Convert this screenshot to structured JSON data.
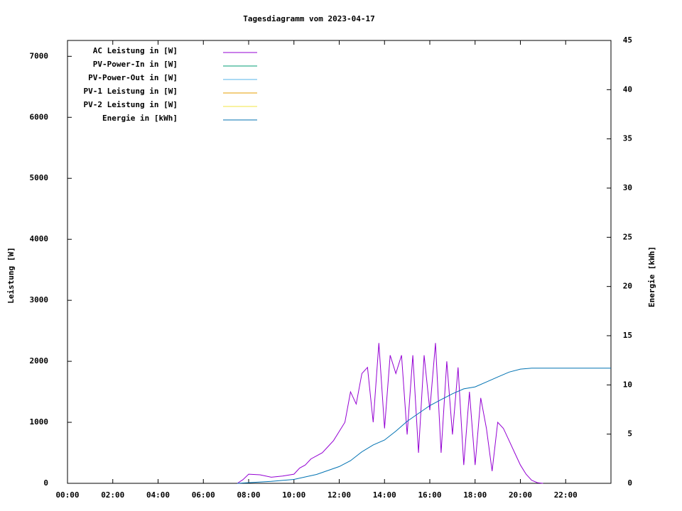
{
  "chart_data": {
    "type": "line",
    "title": "Tagesdiagramm vom 2023-04-17",
    "y_label": "Leistung [W]",
    "y2_label": "Energie [kWh]",
    "xlim": [
      0,
      24
    ],
    "xticks": [
      {
        "value": 0,
        "label": "00:00"
      },
      {
        "value": 2,
        "label": "02:00"
      },
      {
        "value": 4,
        "label": "04:00"
      },
      {
        "value": 6,
        "label": "06:00"
      },
      {
        "value": 8,
        "label": "08:00"
      },
      {
        "value": 10,
        "label": "10:00"
      },
      {
        "value": 12,
        "label": "12:00"
      },
      {
        "value": 14,
        "label": "14:00"
      },
      {
        "value": 16,
        "label": "16:00"
      },
      {
        "value": 18,
        "label": "18:00"
      },
      {
        "value": 20,
        "label": "20:00"
      },
      {
        "value": 22,
        "label": "22:00"
      }
    ],
    "ylim": [
      0,
      7260
    ],
    "yticks": [
      0,
      1000,
      2000,
      3000,
      4000,
      5000,
      6000,
      7000
    ],
    "y2lim": [
      0,
      45
    ],
    "y2ticks": [
      0,
      5,
      10,
      15,
      20,
      25,
      30,
      35,
      40,
      45
    ],
    "grid": false,
    "legend": "top-left",
    "series": [
      {
        "name": "AC Leistung in [W]",
        "color": "#9400d3",
        "x": [
          7.5,
          7.75,
          8,
          8.5,
          9,
          9.5,
          10,
          10.25,
          10.5,
          10.75,
          11,
          11.25,
          11.5,
          11.75,
          12,
          12.25,
          12.5,
          12.75,
          13,
          13.25,
          13.5,
          13.75,
          14,
          14.25,
          14.5,
          14.75,
          15,
          15.25,
          15.5,
          15.75,
          16,
          16.25,
          16.5,
          16.75,
          17,
          17.25,
          17.5,
          17.75,
          18,
          18.25,
          18.5,
          18.75,
          19,
          19.25,
          19.5,
          19.75,
          20,
          20.25,
          20.5,
          20.75,
          21
        ],
        "values": [
          0,
          60,
          150,
          140,
          100,
          120,
          150,
          250,
          300,
          400,
          450,
          500,
          600,
          700,
          850,
          1000,
          1500,
          1300,
          1800,
          1900,
          1000,
          2300,
          900,
          2100,
          1800,
          2100,
          800,
          2100,
          500,
          2100,
          1200,
          2300,
          500,
          2000,
          800,
          1900,
          300,
          1500,
          300,
          1400,
          900,
          200,
          1000,
          900,
          700,
          500,
          300,
          150,
          50,
          10,
          0
        ]
      },
      {
        "name": "PV-Power-In in [W]",
        "color": "#009e73",
        "x": [],
        "values": []
      },
      {
        "name": "PV-Power-Out in [W]",
        "color": "#56b4e9",
        "x": [],
        "values": []
      },
      {
        "name": "PV-1 Leistung in [W]",
        "color": "#e69f00",
        "x": [],
        "values": []
      },
      {
        "name": "PV-2 Leistung in [W]",
        "color": "#f0e442",
        "x": [],
        "values": []
      },
      {
        "name": "Energie in [kWh]",
        "color": "#0072b2",
        "axis": "y2",
        "x": [
          7.5,
          9,
          10,
          11,
          12,
          12.5,
          13,
          13.5,
          14,
          14.5,
          15,
          15.5,
          16,
          16.5,
          17,
          17.5,
          18,
          18.5,
          19,
          19.5,
          20,
          20.5,
          21,
          24
        ],
        "values": [
          0,
          0.2,
          0.4,
          0.9,
          1.7,
          2.3,
          3.2,
          3.9,
          4.4,
          5.3,
          6.3,
          7.1,
          7.9,
          8.5,
          9.1,
          9.6,
          9.8,
          10.3,
          10.8,
          11.3,
          11.6,
          11.7,
          11.7,
          11.7
        ]
      }
    ]
  }
}
